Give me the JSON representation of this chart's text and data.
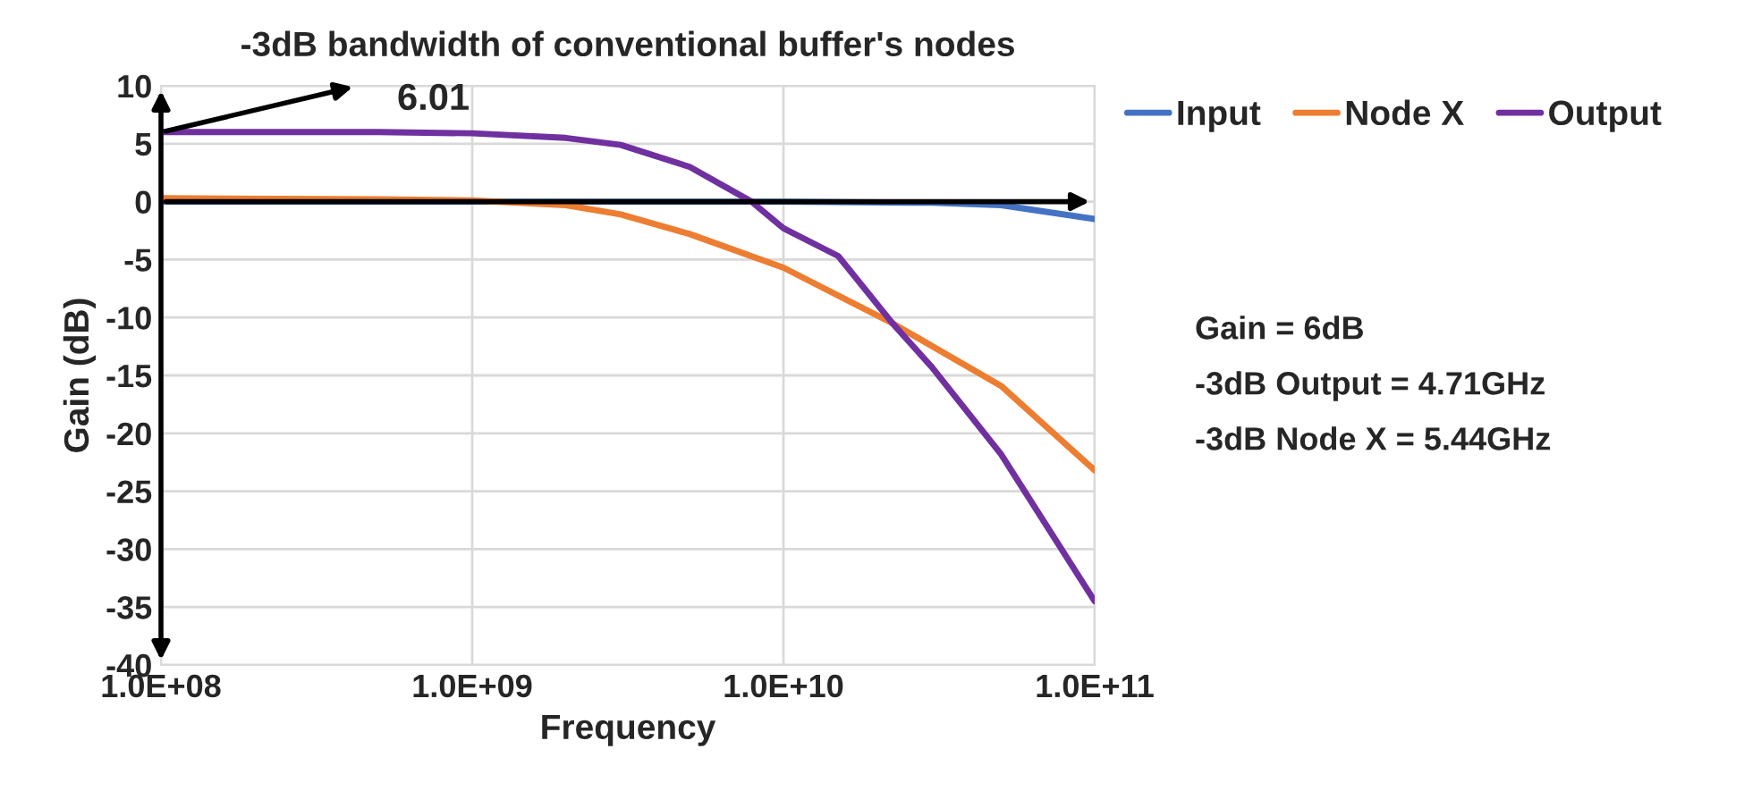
{
  "chart_data": {
    "type": "line",
    "title": "-3dB bandwidth of conventional buffer's nodes",
    "xlabel": "Frequency",
    "ylabel": "Gain (dB)",
    "log": "x",
    "xlim": [
      100000000,
      100000000000
    ],
    "xticks": [
      {
        "value": 100000000,
        "label": "1.0E+08"
      },
      {
        "value": 1000000000,
        "label": "1.0E+09"
      },
      {
        "value": 10000000000,
        "label": "1.0E+10"
      },
      {
        "value": 100000000000,
        "label": "1.0E+11"
      }
    ],
    "ylim": [
      -40,
      10
    ],
    "yticks": [
      -40,
      -35,
      -30,
      -25,
      -20,
      -15,
      -10,
      -5,
      0,
      5,
      10
    ],
    "grid": true,
    "legend": "top right",
    "line_style": "solid",
    "marker": "none",
    "series": [
      {
        "name": "Input",
        "color": "#4472c4",
        "x": [
          100000000,
          1000000000,
          3000000000,
          10000000000,
          30000000000,
          50000000000,
          100000000000
        ],
        "values": [
          0,
          0,
          0,
          0,
          -0.1,
          -0.3,
          -1.5
        ]
      },
      {
        "name": "Node X",
        "color": "#ed7d31",
        "x": [
          100000000,
          500000000,
          1000000000,
          2000000000,
          3000000000,
          5000000000,
          10000000000,
          22400000000,
          50000000000,
          100000000000
        ],
        "values": [
          0.3,
          0.2,
          0.1,
          -0.3,
          -1.1,
          -2.8,
          -5.7,
          -10.5,
          -15.9,
          -23.2
        ]
      },
      {
        "name": "Output",
        "color": "#7030a0",
        "x": [
          100000000,
          500000000,
          1000000000,
          2000000000,
          3000000000,
          5000000000,
          7900000000,
          10000000000,
          15000000000,
          22400000000,
          30000000000,
          50000000000,
          100000000000
        ],
        "values": [
          6.0,
          6.0,
          5.9,
          5.5,
          4.9,
          3.0,
          0,
          -2.3,
          -4.7,
          -10.5,
          -14.3,
          -21.8,
          -34.5
        ]
      }
    ],
    "annotations": [
      "6.01",
      "Gain = 6dB",
      "-3dB Output = 4.71GHz",
      "-3dB Node X = 5.44GHz"
    ]
  }
}
